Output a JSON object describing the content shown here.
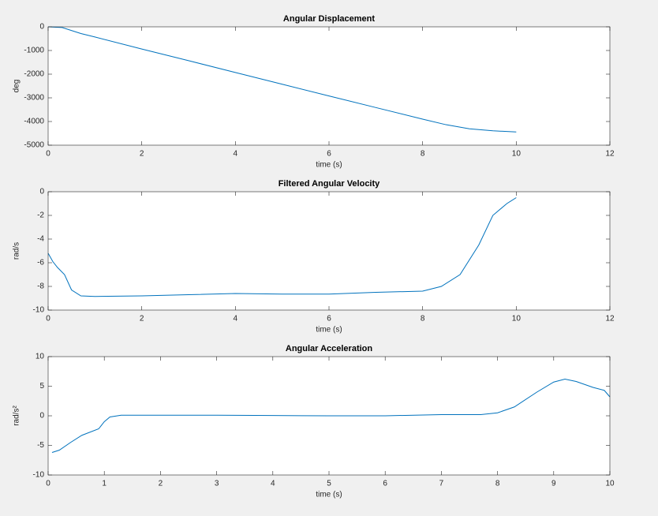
{
  "chart_data": [
    {
      "type": "line",
      "title": "Angular Displacement",
      "xlabel": "time (s)",
      "ylabel": "deg",
      "color": "#0072bd",
      "x": [
        0,
        0.3,
        0.7,
        1,
        2,
        3,
        4,
        5,
        6,
        7,
        8,
        8.5,
        9,
        9.5,
        10
      ],
      "values": [
        0,
        -30,
        -282,
        -430,
        -937,
        -1430,
        -1930,
        -2425,
        -2920,
        -3410,
        -3900,
        -4135,
        -4307,
        -4393,
        -4440
      ],
      "xlim": [
        0,
        12
      ],
      "ylim": [
        -5000,
        0
      ],
      "xticks": [
        0,
        2,
        4,
        6,
        8,
        10,
        12
      ],
      "yticks": [
        -5000,
        -4000,
        -3000,
        -2000,
        -1000,
        0
      ]
    },
    {
      "type": "line",
      "title": "Filtered Angular Velocity",
      "xlabel": "time (s)",
      "ylabel": "rad/s",
      "color": "#0072bd",
      "x": [
        0,
        0.1,
        0.2,
        0.35,
        0.5,
        0.7,
        1,
        2,
        3,
        4,
        5,
        6,
        7,
        8,
        8.4,
        8.8,
        9.2,
        9.5,
        9.8,
        10
      ],
      "values": [
        -5.2,
        -5.9,
        -6.4,
        -7,
        -8.3,
        -8.8,
        -8.85,
        -8.8,
        -8.7,
        -8.6,
        -8.65,
        -8.65,
        -8.5,
        -8.4,
        -8,
        -7,
        -4.5,
        -2,
        -1,
        -0.5
      ],
      "xlim": [
        0,
        12
      ],
      "ylim": [
        -10,
        0
      ],
      "xticks": [
        0,
        2,
        4,
        6,
        8,
        10,
        12
      ],
      "yticks": [
        -10,
        -8,
        -6,
        -4,
        -2,
        0
      ]
    },
    {
      "type": "line",
      "title": "Angular Acceleration",
      "xlabel": "time (s)",
      "ylabel": "rad/s²",
      "color": "#0072bd",
      "x": [
        0.07,
        0.2,
        0.4,
        0.6,
        0.9,
        1.0,
        1.1,
        1.3,
        2,
        3,
        4,
        5,
        6,
        7,
        7.7,
        8,
        8.3,
        8.7,
        9,
        9.2,
        9.4,
        9.7,
        9.9,
        10
      ],
      "values": [
        -6.2,
        -5.8,
        -4.5,
        -3.3,
        -2.2,
        -1,
        -0.2,
        0.1,
        0.1,
        0.1,
        0.05,
        0,
        0,
        0.2,
        0.2,
        0.5,
        1.5,
        4,
        5.7,
        6.2,
        5.8,
        4.8,
        4.3,
        3.2
      ],
      "xlim": [
        0,
        10
      ],
      "ylim": [
        -10,
        10
      ],
      "xticks": [
        0,
        1,
        2,
        3,
        4,
        5,
        6,
        7,
        8,
        9,
        10
      ],
      "yticks": [
        -10,
        -5,
        0,
        5,
        10
      ]
    }
  ]
}
